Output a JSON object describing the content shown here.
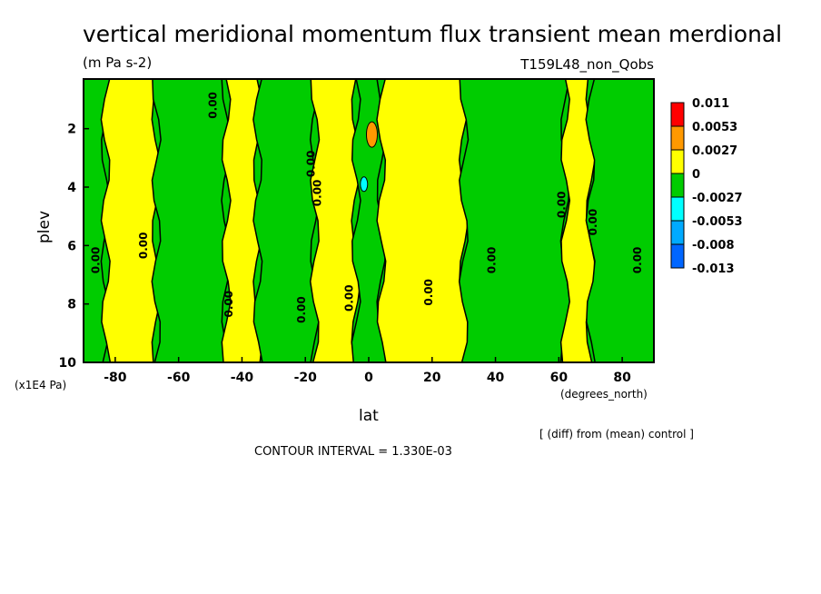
{
  "chart_data": {
    "type": "heatmap",
    "title": "vertical meridional momentum flux transient mean merdional",
    "units": "(m Pa s-2)",
    "run_label": "T159L48_non_Qobs",
    "xlabel": "lat",
    "x_units": "(degrees_north)",
    "ylabel": "plev",
    "y_units": "(x1E4 Pa)",
    "xlim": [
      -90,
      90
    ],
    "ylim": [
      10,
      0.3
    ],
    "x_ticks": [
      -80,
      -60,
      -40,
      -20,
      0,
      20,
      40,
      60,
      80
    ],
    "y_ticks": [
      2,
      4,
      6,
      8,
      10
    ],
    "contour_label": "0.00",
    "contour_interval_text": "CONTOUR INTERVAL = 1.330E-03",
    "diff_note": "[ (diff) from (mean) control ]",
    "colorbar": {
      "levels": [
        "0.011",
        "0.0053",
        "0.0027",
        "0",
        "-0.0027",
        "-0.0053",
        "-0.008",
        "-0.013"
      ],
      "colors": [
        "#ff0000",
        "#ff9900",
        "#ffff00",
        "#00cc00",
        "#00ffff",
        "#00aaff",
        "#0066ff"
      ]
    },
    "bands": [
      {
        "lat": [
          -90,
          -83
        ],
        "sign": "negative"
      },
      {
        "lat": [
          -83,
          -67
        ],
        "sign": "positive"
      },
      {
        "lat": [
          -67,
          -45
        ],
        "sign": "negative"
      },
      {
        "lat": [
          -45,
          -35
        ],
        "sign": "positive"
      },
      {
        "lat": [
          -35,
          -17
        ],
        "sign": "negative"
      },
      {
        "lat": [
          -17,
          -4
        ],
        "sign": "positive"
      },
      {
        "lat": [
          -4,
          4
        ],
        "sign": "negative"
      },
      {
        "lat": [
          4,
          30
        ],
        "sign": "positive"
      },
      {
        "lat": [
          30,
          62
        ],
        "sign": "negative"
      },
      {
        "lat": [
          62,
          70
        ],
        "sign": "positive"
      },
      {
        "lat": [
          70,
          90
        ],
        "sign": "negative"
      }
    ]
  }
}
